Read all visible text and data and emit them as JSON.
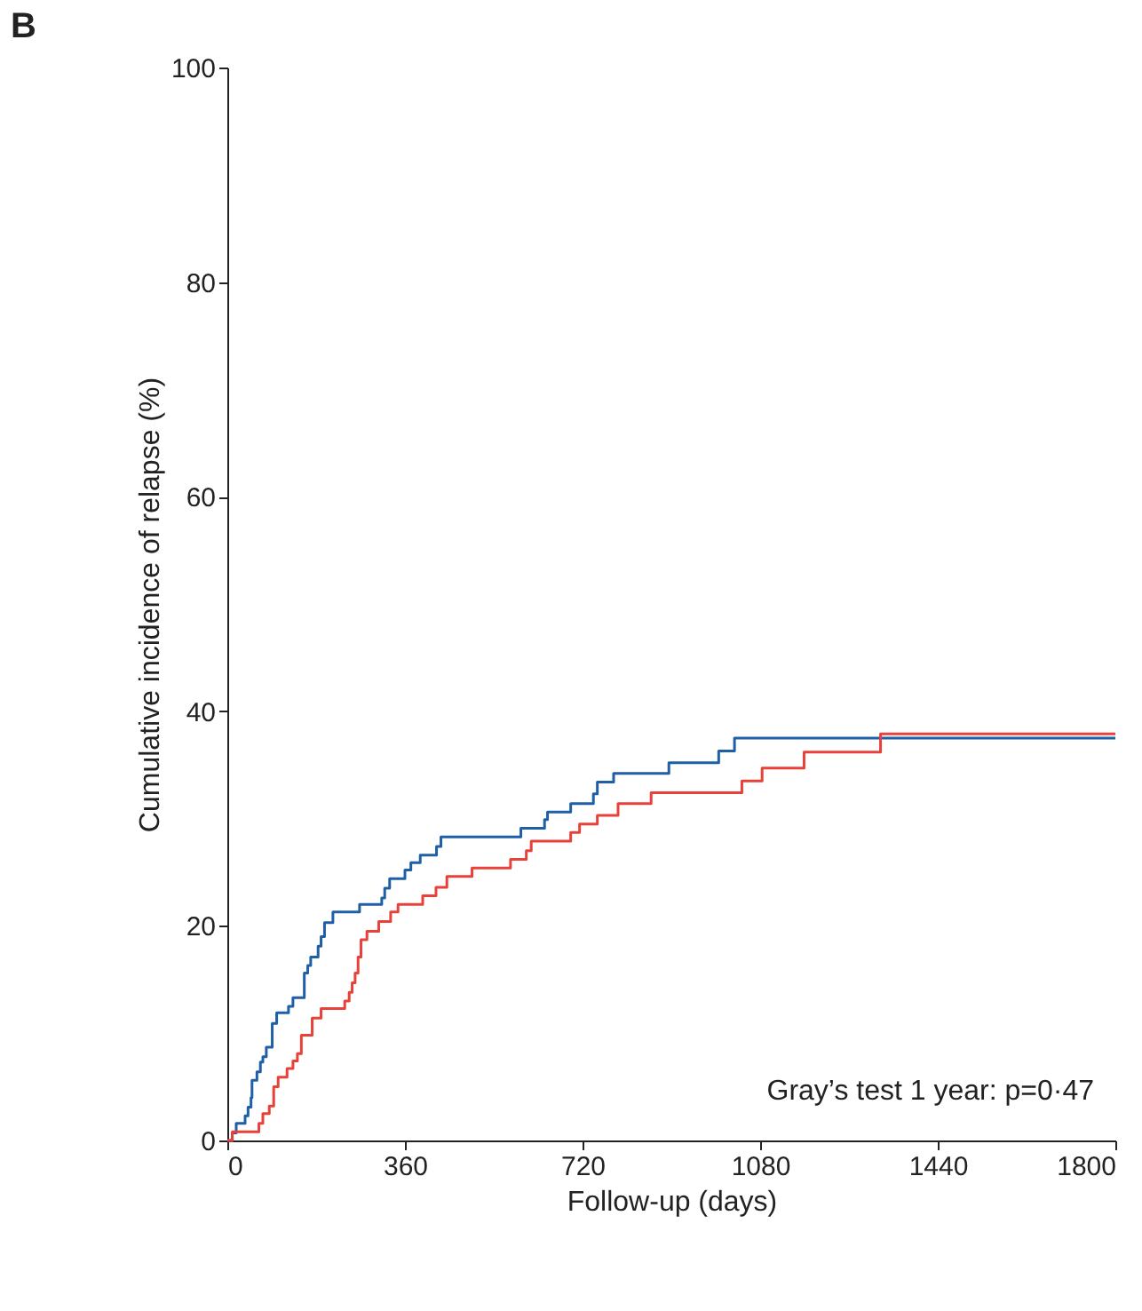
{
  "chart_data": {
    "type": "step",
    "title": "B",
    "xlabel": "Follow-up (days)",
    "ylabel": "Cumulative incidence of relapse (%)",
    "xlim": [
      0,
      1800
    ],
    "xticks": [
      0,
      360,
      720,
      1080,
      1440,
      1800
    ],
    "ylim": [
      0,
      100
    ],
    "yticks": [
      0,
      20,
      40,
      60,
      80,
      100
    ],
    "grid": false,
    "marker": "none",
    "line_style": "solid",
    "annotations": [
      "Gray’s test 1 year: p=0·47"
    ],
    "series": [
      {
        "color": "#1f5fa6",
        "x": [
          0,
          10,
          18,
          36,
          42,
          48,
          50,
          60,
          67,
          72,
          79,
          91,
          100,
          124,
          133,
          156,
          163,
          169,
          184,
          190,
          197,
          214,
          268,
          313,
          319,
          329,
          360,
          372,
          391,
          424,
          433,
          595,
          643,
          649,
          696,
          742,
          750,
          783,
          895,
          996,
          1028,
          1800
        ],
        "values": [
          0,
          0.7,
          1.6,
          2.3,
          3.1,
          4.0,
          5.6,
          6.4,
          7.3,
          7.8,
          8.7,
          10.9,
          11.9,
          12.5,
          13.3,
          15.6,
          16.3,
          17.1,
          18.1,
          19.0,
          20.3,
          21.3,
          22.0,
          22.6,
          23.5,
          24.4,
          25.2,
          25.9,
          26.6,
          27.4,
          28.3,
          29.1,
          29.9,
          30.6,
          31.4,
          32.3,
          33.4,
          34.2,
          35.2,
          36.3,
          37.5,
          37.5
        ]
      },
      {
        "color": "#e8413a",
        "x": [
          0,
          10,
          64,
          72,
          85,
          94,
          103,
          121,
          133,
          142,
          150,
          172,
          190,
          238,
          247,
          253,
          259,
          265,
          271,
          283,
          307,
          331,
          346,
          396,
          423,
          445,
          496,
          574,
          606,
          616,
          696,
          714,
          750,
          792,
          859,
          1043,
          1084,
          1169,
          1324,
          1800
        ],
        "values": [
          0,
          0.8,
          1.6,
          2.5,
          3.2,
          5.0,
          5.9,
          6.7,
          7.4,
          8.1,
          9.8,
          11.4,
          12.3,
          13.0,
          13.8,
          14.7,
          15.6,
          17.1,
          18.7,
          19.5,
          20.4,
          21.3,
          22.0,
          22.8,
          23.6,
          24.6,
          25.4,
          26.2,
          27.0,
          27.9,
          28.7,
          29.5,
          30.3,
          31.4,
          32.4,
          33.5,
          34.7,
          36.2,
          37.9,
          37.9
        ]
      }
    ]
  }
}
